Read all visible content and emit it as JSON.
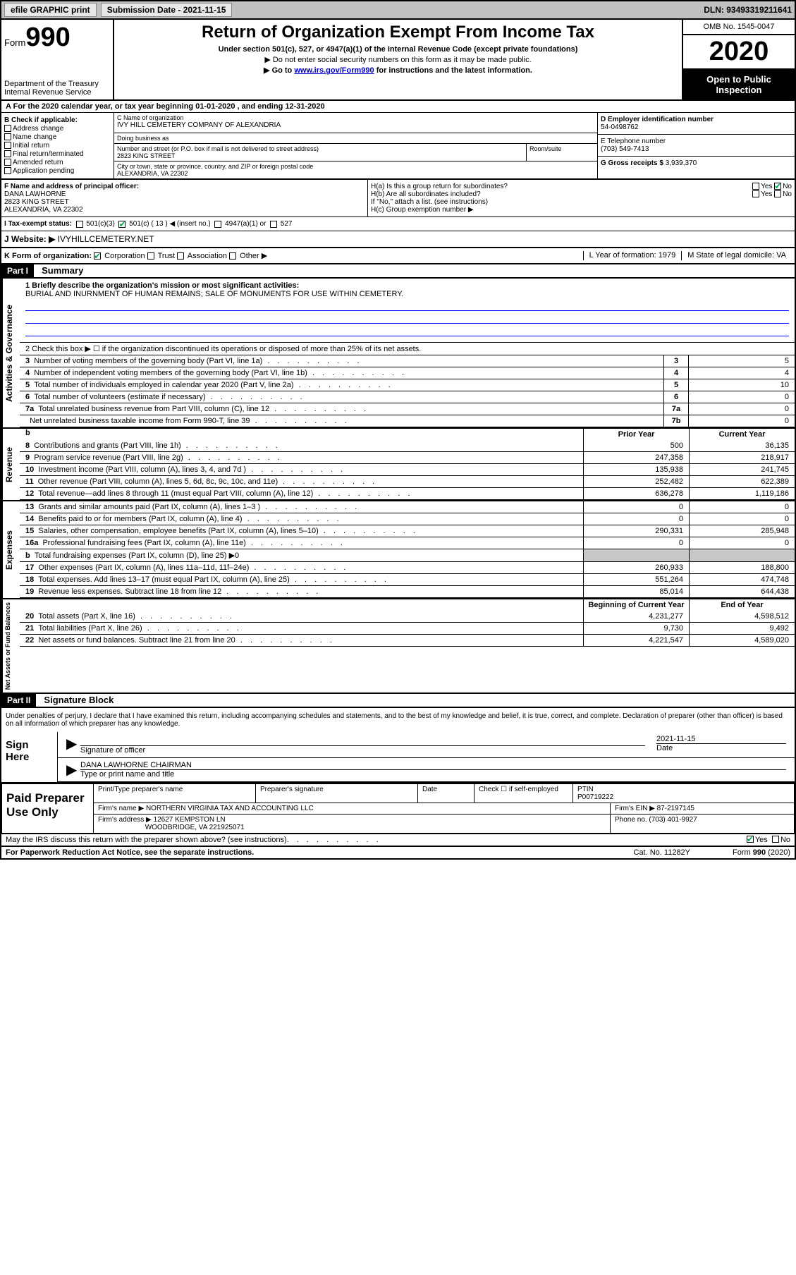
{
  "topbar": {
    "efile": "efile GRAPHIC print",
    "submission_label": "Submission Date - 2021-11-15",
    "dln": "DLN: 93493319211641"
  },
  "header": {
    "form_label": "Form",
    "form_number": "990",
    "dept1": "Department of the Treasury",
    "dept2": "Internal Revenue Service",
    "title": "Return of Organization Exempt From Income Tax",
    "subtitle": "Under section 501(c), 527, or 4947(a)(1) of the Internal Revenue Code (except private foundations)",
    "note1": "▶ Do not enter social security numbers on this form as it may be made public.",
    "note2_pre": "▶ Go to ",
    "note2_link": "www.irs.gov/Form990",
    "note2_post": " for instructions and the latest information.",
    "omb": "OMB No. 1545-0047",
    "year": "2020",
    "inspection": "Open to Public Inspection"
  },
  "period": "For the 2020 calendar year, or tax year beginning 01-01-2020   , and ending 12-31-2020",
  "box_b": {
    "label": "B Check if applicable:",
    "items": [
      "Address change",
      "Name change",
      "Initial return",
      "Final return/terminated",
      "Amended return",
      "Application pending"
    ]
  },
  "box_c": {
    "name_label": "C Name of organization",
    "name": "IVY HILL CEMETERY COMPANY OF ALEXANDRIA",
    "dba_label": "Doing business as",
    "street_label": "Number and street (or P.O. box if mail is not delivered to street address)",
    "street": "2823 KING STREET",
    "room_label": "Room/suite",
    "city_label": "City or town, state or province, country, and ZIP or foreign postal code",
    "city": "ALEXANDRIA, VA  22302"
  },
  "box_d": {
    "label": "D Employer identification number",
    "value": "54-0498762"
  },
  "box_e": {
    "label": "E Telephone number",
    "value": "(703) 549-7413"
  },
  "box_g": {
    "label": "G Gross receipts $",
    "value": "3,939,370"
  },
  "box_f": {
    "label": "F  Name and address of principal officer:",
    "name": "DANA LAWHORNE",
    "street": "2823 KING STREET",
    "city": "ALEXANDRIA, VA  22302"
  },
  "box_h": {
    "ha": "H(a)  Is this a group return for subordinates?",
    "hb": "H(b)  Are all subordinates included?",
    "hb_note": "If \"No,\" attach a list. (see instructions)",
    "hc": "H(c)  Group exemption number ▶",
    "yes": "Yes",
    "no": "No"
  },
  "row_i": {
    "label": "I   Tax-exempt status:",
    "opt1": "501(c)(3)",
    "opt2": "501(c) ( 13 ) ◀ (insert no.)",
    "opt3": "4947(a)(1) or",
    "opt4": "527"
  },
  "row_j": {
    "label": "J   Website: ▶",
    "value": "IVYHILLCEMETERY.NET"
  },
  "row_k": {
    "label": "K Form of organization:",
    "opts": [
      "Corporation",
      "Trust",
      "Association",
      "Other ▶"
    ],
    "l": "L Year of formation: 1979",
    "m": "M State of legal domicile: VA"
  },
  "part1": {
    "header": "Part I",
    "title": "Summary"
  },
  "summary": {
    "mission_label": "1   Briefly describe the organization's mission or most significant activities:",
    "mission": "BURIAL AND INURNMENT OF HUMAN REMAINS; SALE OF MONUMENTS FOR USE WITHIN CEMETERY.",
    "line2": "2   Check this box ▶ ☐  if the organization discontinued its operations or disposed of more than 25% of its net assets.",
    "vtabs": {
      "governance": "Activities & Governance",
      "revenue": "Revenue",
      "expenses": "Expenses",
      "netassets": "Net Assets or Fund Balances"
    },
    "rows_single": [
      {
        "n": "3",
        "label": "Number of voting members of the governing body (Part VI, line 1a)",
        "ln": "3",
        "val": "5"
      },
      {
        "n": "4",
        "label": "Number of independent voting members of the governing body (Part VI, line 1b)",
        "ln": "4",
        "val": "4"
      },
      {
        "n": "5",
        "label": "Total number of individuals employed in calendar year 2020 (Part V, line 2a)",
        "ln": "5",
        "val": "10"
      },
      {
        "n": "6",
        "label": "Total number of volunteers (estimate if necessary)",
        "ln": "6",
        "val": "0"
      },
      {
        "n": "7a",
        "label": "Total unrelated business revenue from Part VIII, column (C), line 12",
        "ln": "7a",
        "val": "0"
      },
      {
        "n": "",
        "label": "Net unrelated business taxable income from Form 990-T, line 39",
        "ln": "7b",
        "val": "0"
      }
    ],
    "col_headers": {
      "b": "b",
      "prior": "Prior Year",
      "current": "Current Year"
    },
    "revenue_rows": [
      {
        "n": "8",
        "label": "Contributions and grants (Part VIII, line 1h)",
        "p": "500",
        "c": "36,135"
      },
      {
        "n": "9",
        "label": "Program service revenue (Part VIII, line 2g)",
        "p": "247,358",
        "c": "218,917"
      },
      {
        "n": "10",
        "label": "Investment income (Part VIII, column (A), lines 3, 4, and 7d )",
        "p": "135,938",
        "c": "241,745"
      },
      {
        "n": "11",
        "label": "Other revenue (Part VIII, column (A), lines 5, 6d, 8c, 9c, 10c, and 11e)",
        "p": "252,482",
        "c": "622,389"
      },
      {
        "n": "12",
        "label": "Total revenue—add lines 8 through 11 (must equal Part VIII, column (A), line 12)",
        "p": "636,278",
        "c": "1,119,186"
      }
    ],
    "expense_rows": [
      {
        "n": "13",
        "label": "Grants and similar amounts paid (Part IX, column (A), lines 1–3 )",
        "p": "0",
        "c": "0"
      },
      {
        "n": "14",
        "label": "Benefits paid to or for members (Part IX, column (A), line 4)",
        "p": "0",
        "c": "0"
      },
      {
        "n": "15",
        "label": "Salaries, other compensation, employee benefits (Part IX, column (A), lines 5–10)",
        "p": "290,331",
        "c": "285,948"
      },
      {
        "n": "16a",
        "label": "Professional fundraising fees (Part IX, column (A), line 11e)",
        "p": "0",
        "c": "0"
      },
      {
        "n": "b",
        "label": "Total fundraising expenses (Part IX, column (D), line 25) ▶0",
        "p": "",
        "c": "",
        "shaded": true
      },
      {
        "n": "17",
        "label": "Other expenses (Part IX, column (A), lines 11a–11d, 11f–24e)",
        "p": "260,933",
        "c": "188,800"
      },
      {
        "n": "18",
        "label": "Total expenses. Add lines 13–17 (must equal Part IX, column (A), line 25)",
        "p": "551,264",
        "c": "474,748"
      },
      {
        "n": "19",
        "label": "Revenue less expenses. Subtract line 18 from line 12",
        "p": "85,014",
        "c": "644,438"
      }
    ],
    "net_headers": {
      "prior": "Beginning of Current Year",
      "current": "End of Year"
    },
    "net_rows": [
      {
        "n": "20",
        "label": "Total assets (Part X, line 16)",
        "p": "4,231,277",
        "c": "4,598,512"
      },
      {
        "n": "21",
        "label": "Total liabilities (Part X, line 26)",
        "p": "9,730",
        "c": "9,492"
      },
      {
        "n": "22",
        "label": "Net assets or fund balances. Subtract line 21 from line 20",
        "p": "4,221,547",
        "c": "4,589,020"
      }
    ]
  },
  "part2": {
    "header": "Part II",
    "title": "Signature Block"
  },
  "perjury": "Under penalties of perjury, I declare that I have examined this return, including accompanying schedules and statements, and to the best of my knowledge and belief, it is true, correct, and complete. Declaration of preparer (other than officer) is based on all information of which preparer has any knowledge.",
  "sign": {
    "here": "Sign Here",
    "sig_officer": "Signature of officer",
    "date": "Date",
    "date_val": "2021-11-15",
    "name_title": "DANA LAWHORNE  CHAIRMAN",
    "type_label": "Type or print name and title"
  },
  "preparer": {
    "label": "Paid Preparer Use Only",
    "print_name": "Print/Type preparer's name",
    "signature": "Preparer's signature",
    "date": "Date",
    "check_self": "Check ☐ if self-employed",
    "ptin_label": "PTIN",
    "ptin": "P00719222",
    "firm_name_label": "Firm's name    ▶",
    "firm_name": "NORTHERN VIRGINIA TAX AND ACCOUNTING LLC",
    "firm_ein_label": "Firm's EIN ▶",
    "firm_ein": "87-2197145",
    "firm_addr_label": "Firm's address ▶",
    "firm_addr1": "12627 KEMPSTON LN",
    "firm_addr2": "WOODBRIDGE, VA  221925071",
    "phone_label": "Phone no.",
    "phone": "(703) 401-9927"
  },
  "discuss": "May the IRS discuss this return with the preparer shown above? (see instructions)",
  "footer": {
    "paperwork": "For Paperwork Reduction Act Notice, see the separate instructions.",
    "catno": "Cat. No. 11282Y",
    "formno": "Form 990 (2020)"
  }
}
